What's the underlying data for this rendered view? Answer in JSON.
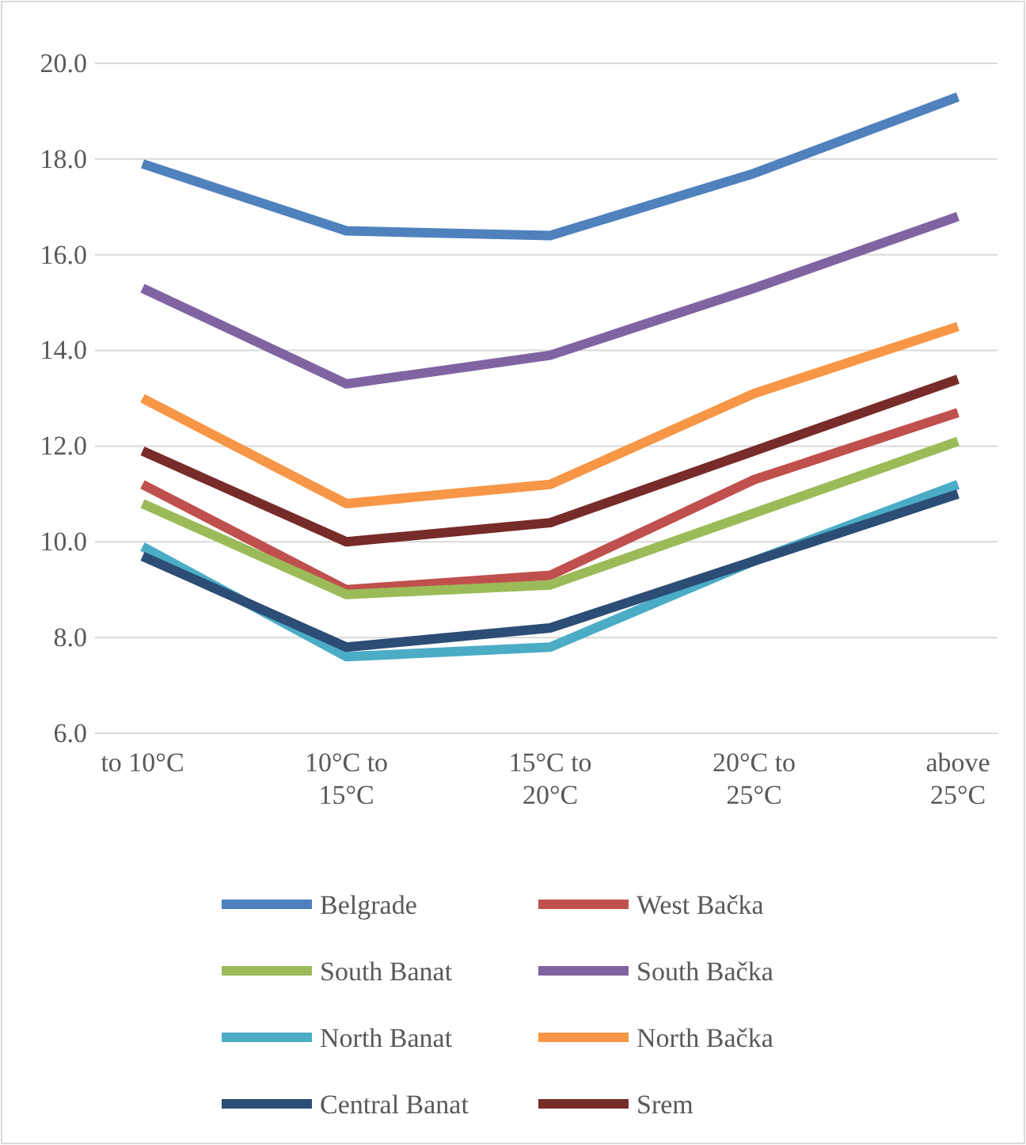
{
  "chart_data": {
    "type": "line",
    "categories": [
      "to 10°C",
      "10°C to 15°C",
      "15°C to 20°C",
      "20°C to 25°C",
      "above 25°C"
    ],
    "series": [
      {
        "name": "Belgrade",
        "color": "#4f81bd",
        "values": [
          17.9,
          16.5,
          16.4,
          17.7,
          19.3
        ]
      },
      {
        "name": "West Bačka",
        "color": "#c0504d",
        "values": [
          11.2,
          9.0,
          9.3,
          11.3,
          12.7
        ]
      },
      {
        "name": "South Banat",
        "color": "#9bbb59",
        "values": [
          10.8,
          8.9,
          9.1,
          10.6,
          12.1
        ]
      },
      {
        "name": "South Bačka",
        "color": "#8064a2",
        "values": [
          15.3,
          13.3,
          13.9,
          15.3,
          16.8
        ]
      },
      {
        "name": "North Banat",
        "color": "#4bacc6",
        "values": [
          9.9,
          7.6,
          7.8,
          9.6,
          11.2
        ]
      },
      {
        "name": "North Bačka",
        "color": "#f79646",
        "values": [
          13.0,
          10.8,
          11.2,
          13.1,
          14.5
        ]
      },
      {
        "name": "Central Banat",
        "color": "#2c4d75",
        "values": [
          9.7,
          7.8,
          8.2,
          9.6,
          11.0
        ]
      },
      {
        "name": "Srem",
        "color": "#772c2a",
        "values": [
          11.9,
          10.0,
          10.4,
          11.9,
          13.4
        ]
      }
    ],
    "ylim": [
      6,
      20
    ],
    "yticks": [
      {
        "value": 6,
        "label": "6.0"
      },
      {
        "value": 8,
        "label": "8.0"
      },
      {
        "value": 10,
        "label": "10.0"
      },
      {
        "value": 12,
        "label": "12.0"
      },
      {
        "value": 14,
        "label": "14.0"
      },
      {
        "value": 16,
        "label": "16.0"
      },
      {
        "value": 18,
        "label": "18.0"
      },
      {
        "value": 20,
        "label": "20.0"
      }
    ],
    "grid": "y",
    "legend": "bottom",
    "marker": "none",
    "line_style": "solid"
  }
}
